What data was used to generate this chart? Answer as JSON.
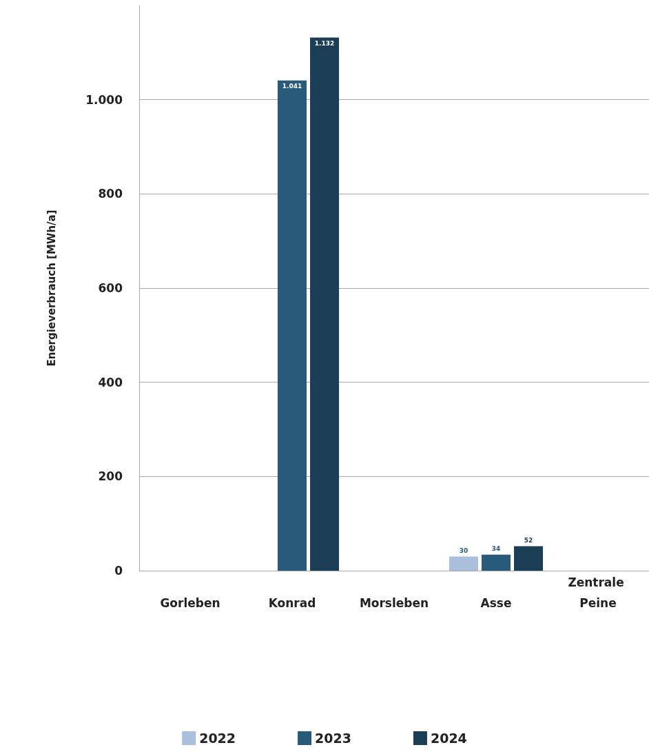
{
  "chart_data": {
    "type": "bar",
    "ylabel": "Energieverbrauch [MWh/a]",
    "categories": [
      "Gorleben",
      "Konrad",
      "Morsleben",
      "Asse",
      "Zentrale Peine"
    ],
    "series": [
      {
        "name": "2022",
        "color": "#a9bfdc",
        "values": [
          null,
          null,
          null,
          30,
          null
        ],
        "value_labels": [
          null,
          null,
          null,
          "30",
          null
        ]
      },
      {
        "name": "2023",
        "color": "#285a7a",
        "values": [
          null,
          1041,
          null,
          34,
          null
        ],
        "value_labels": [
          null,
          "1.041",
          null,
          "34",
          null
        ]
      },
      {
        "name": "2024",
        "color": "#1c3d56",
        "values": [
          null,
          1132,
          null,
          52,
          null
        ],
        "value_labels": [
          null,
          "1.132",
          null,
          "52",
          null
        ]
      }
    ],
    "ylim": [
      0,
      1200
    ],
    "yticks": [
      0,
      200,
      400,
      600,
      800,
      {
        "value": 1000,
        "label": "1.000"
      }
    ],
    "grid": "y",
    "legend": "bottom"
  }
}
